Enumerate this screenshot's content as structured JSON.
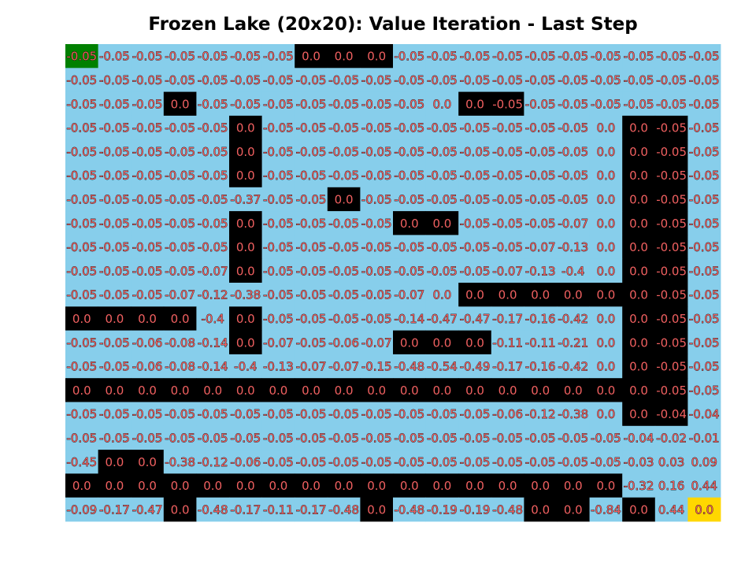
{
  "chart_data": {
    "type": "heatmap",
    "title": "Frozen Lake (20x20): Value Iteration - Last Step",
    "rows": 20,
    "cols": 20,
    "cell_colors": {
      "frozen": "#87ceeb",
      "hole": "#000000",
      "start": "#008000",
      "goal": "#ffd700"
    },
    "text_color": "#f06060",
    "text_stroke": "#000000",
    "grid_map": [
      "SFFFFFFHHHFFFFFFFFFF",
      "FFFFFFFFFFFFFFFFFFFF",
      "FFFHFFFFFFFFHHFFFFFF",
      "FFFFFHFFFFFFFFFFFHHF",
      "FFFFFHFFFFFFFFFFFHHF",
      "FFFFFHFFFFFFFFFFFHHF",
      "FFFFFFFFHFFFFFFFFHHF",
      "FFFFFHFFFFHHFFFFFHHF",
      "FFFFFHFFFFFFFFFFFHHF",
      "FFFFFHFFFFFFFFFFFHHF",
      "FFFFFFFFFFFFHHHHHHHF",
      "HHHHFHFFFFFFFFFFFHHF",
      "FFFFFHFFFFHHHFFFFHHF",
      "FFFFFFFFFFFFFFFFFHHF",
      "HHHHHHHHHHHHHHHHHHHF",
      "FFFFFFFFFFFFFFFFFHHF",
      "FFFFFFFFFFFFFFFFFFFF",
      "FHHFFFFFFFFFFFFFFFFF",
      "HHHHHHHHHHHHHHHHHFFF",
      "FFFHFFFFFHFFFFHHFHFG"
    ],
    "values": [
      [
        "-0.05",
        "-0.05",
        "-0.05",
        "-0.05",
        "-0.05",
        "-0.05",
        "-0.05",
        "0.0",
        "0.0",
        "0.0",
        "-0.05",
        "-0.05",
        "-0.05",
        "-0.05",
        "-0.05",
        "-0.05",
        "-0.05",
        "-0.05",
        "-0.05",
        "-0.05"
      ],
      [
        "-0.05",
        "-0.05",
        "-0.05",
        "-0.05",
        "-0.05",
        "-0.05",
        "-0.05",
        "-0.05",
        "-0.05",
        "-0.05",
        "-0.05",
        "-0.05",
        "-0.05",
        "-0.05",
        "-0.05",
        "-0.05",
        "-0.05",
        "-0.05",
        "-0.05",
        "-0.05"
      ],
      [
        "-0.05",
        "-0.05",
        "-0.05",
        "0.0",
        "-0.05",
        "-0.05",
        "-0.05",
        "-0.05",
        "-0.05",
        "-0.05",
        "-0.05",
        "0.0",
        "0.0",
        "-0.05",
        "-0.05",
        "-0.05",
        "-0.05",
        "-0.05",
        "-0.05",
        "-0.05"
      ],
      [
        "-0.05",
        "-0.05",
        "-0.05",
        "-0.05",
        "-0.05",
        "0.0",
        "-0.05",
        "-0.05",
        "-0.05",
        "-0.05",
        "-0.05",
        "-0.05",
        "-0.05",
        "-0.05",
        "-0.05",
        "-0.05",
        "0.0",
        "0.0",
        "-0.05",
        "-0.05"
      ],
      [
        "-0.05",
        "-0.05",
        "-0.05",
        "-0.05",
        "-0.05",
        "0.0",
        "-0.05",
        "-0.05",
        "-0.05",
        "-0.05",
        "-0.05",
        "-0.05",
        "-0.05",
        "-0.05",
        "-0.05",
        "-0.05",
        "0.0",
        "0.0",
        "-0.05",
        "-0.05"
      ],
      [
        "-0.05",
        "-0.05",
        "-0.05",
        "-0.05",
        "-0.05",
        "0.0",
        "-0.05",
        "-0.05",
        "-0.05",
        "-0.05",
        "-0.05",
        "-0.05",
        "-0.05",
        "-0.05",
        "-0.05",
        "-0.05",
        "0.0",
        "0.0",
        "-0.05",
        "-0.05"
      ],
      [
        "-0.05",
        "-0.05",
        "-0.05",
        "-0.05",
        "-0.05",
        "-0.37",
        "-0.05",
        "-0.05",
        "0.0",
        "-0.05",
        "-0.05",
        "-0.05",
        "-0.05",
        "-0.05",
        "-0.05",
        "-0.05",
        "0.0",
        "0.0",
        "-0.05",
        "-0.05"
      ],
      [
        "-0.05",
        "-0.05",
        "-0.05",
        "-0.05",
        "-0.05",
        "0.0",
        "-0.05",
        "-0.05",
        "-0.05",
        "-0.05",
        "0.0",
        "0.0",
        "-0.05",
        "-0.05",
        "-0.05",
        "-0.07",
        "0.0",
        "0.0",
        "-0.05",
        "-0.05"
      ],
      [
        "-0.05",
        "-0.05",
        "-0.05",
        "-0.05",
        "-0.05",
        "0.0",
        "-0.05",
        "-0.05",
        "-0.05",
        "-0.05",
        "-0.05",
        "-0.05",
        "-0.05",
        "-0.05",
        "-0.07",
        "-0.13",
        "0.0",
        "0.0",
        "-0.05",
        "-0.05"
      ],
      [
        "-0.05",
        "-0.05",
        "-0.05",
        "-0.05",
        "-0.07",
        "0.0",
        "-0.05",
        "-0.05",
        "-0.05",
        "-0.05",
        "-0.05",
        "-0.05",
        "-0.05",
        "-0.07",
        "-0.13",
        "-0.4",
        "0.0",
        "0.0",
        "-0.05",
        "-0.05"
      ],
      [
        "-0.05",
        "-0.05",
        "-0.05",
        "-0.07",
        "-0.12",
        "-0.38",
        "-0.05",
        "-0.05",
        "-0.05",
        "-0.05",
        "-0.07",
        "0.0",
        "0.0",
        "0.0",
        "0.0",
        "0.0",
        "0.0",
        "0.0",
        "-0.05",
        "-0.05"
      ],
      [
        "0.0",
        "0.0",
        "0.0",
        "0.0",
        "-0.4",
        "0.0",
        "-0.05",
        "-0.05",
        "-0.05",
        "-0.05",
        "-0.14",
        "-0.47",
        "-0.47",
        "-0.17",
        "-0.16",
        "-0.42",
        "0.0",
        "0.0",
        "-0.05",
        "-0.05"
      ],
      [
        "-0.05",
        "-0.05",
        "-0.06",
        "-0.08",
        "-0.14",
        "0.0",
        "-0.07",
        "-0.05",
        "-0.06",
        "-0.07",
        "0.0",
        "0.0",
        "0.0",
        "-0.11",
        "-0.11",
        "-0.21",
        "0.0",
        "0.0",
        "-0.05",
        "-0.05"
      ],
      [
        "-0.05",
        "-0.05",
        "-0.06",
        "-0.08",
        "-0.14",
        "-0.4",
        "-0.13",
        "-0.07",
        "-0.07",
        "-0.15",
        "-0.48",
        "-0.54",
        "-0.49",
        "-0.17",
        "-0.16",
        "-0.42",
        "0.0",
        "0.0",
        "-0.05",
        "-0.05"
      ],
      [
        "0.0",
        "0.0",
        "0.0",
        "0.0",
        "0.0",
        "0.0",
        "0.0",
        "0.0",
        "0.0",
        "0.0",
        "0.0",
        "0.0",
        "0.0",
        "0.0",
        "0.0",
        "0.0",
        "0.0",
        "0.0",
        "-0.05",
        "-0.05"
      ],
      [
        "-0.05",
        "-0.05",
        "-0.05",
        "-0.05",
        "-0.05",
        "-0.05",
        "-0.05",
        "-0.05",
        "-0.05",
        "-0.05",
        "-0.05",
        "-0.05",
        "-0.05",
        "-0.06",
        "-0.12",
        "-0.38",
        "0.0",
        "0.0",
        "-0.04",
        "-0.04"
      ],
      [
        "-0.05",
        "-0.05",
        "-0.05",
        "-0.05",
        "-0.05",
        "-0.05",
        "-0.05",
        "-0.05",
        "-0.05",
        "-0.05",
        "-0.05",
        "-0.05",
        "-0.05",
        "-0.05",
        "-0.05",
        "-0.05",
        "-0.05",
        "-0.04",
        "-0.02",
        "-0.01"
      ],
      [
        "-0.45",
        "0.0",
        "0.0",
        "-0.38",
        "-0.12",
        "-0.06",
        "-0.05",
        "-0.05",
        "-0.05",
        "-0.05",
        "-0.05",
        "-0.05",
        "-0.05",
        "-0.05",
        "-0.05",
        "-0.05",
        "-0.05",
        "-0.03",
        "0.03",
        "0.09"
      ],
      [
        "0.0",
        "0.0",
        "0.0",
        "0.0",
        "0.0",
        "0.0",
        "0.0",
        "0.0",
        "0.0",
        "0.0",
        "0.0",
        "0.0",
        "0.0",
        "0.0",
        "0.0",
        "0.0",
        "0.0",
        "-0.32",
        "0.16",
        "0.44"
      ],
      [
        "-0.09",
        "-0.17",
        "-0.47",
        "0.0",
        "-0.48",
        "-0.17",
        "-0.11",
        "-0.17",
        "-0.48",
        "0.0",
        "-0.48",
        "-0.19",
        "-0.19",
        "-0.48",
        "0.0",
        "0.0",
        "-0.84",
        "0.0",
        "0.44",
        "0.0"
      ]
    ]
  }
}
